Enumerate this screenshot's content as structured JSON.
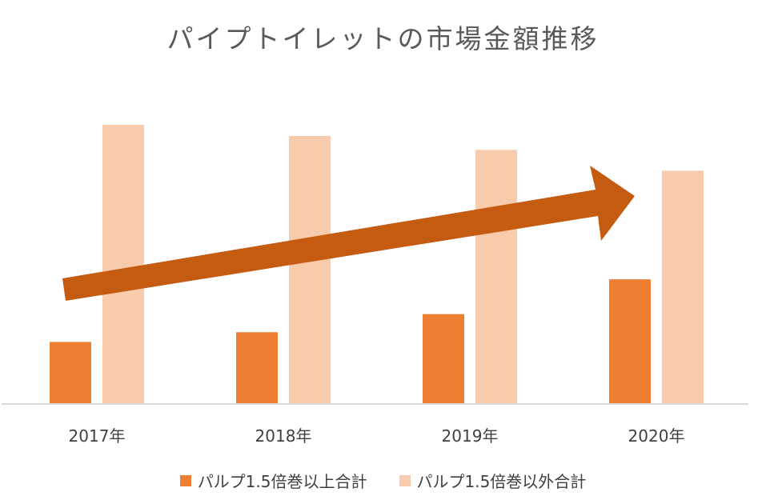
{
  "chart_data": {
    "type": "bar",
    "title": "パイプトイレットの市場金額推移",
    "categories": [
      "2017年",
      "2018年",
      "2019年",
      "2020年"
    ],
    "ylim": [
      0,
      100
    ],
    "grid": false,
    "legend_position": "bottom",
    "series": [
      {
        "name": "パルプ1.5倍巻以上合計",
        "color": "#ED7D31",
        "values": [
          22,
          25.5,
          32,
          44.5
        ]
      },
      {
        "name": "パルプ1.5倍巻以外合計",
        "color": "#F8CBAD",
        "values": [
          100,
          96,
          91,
          83.5
        ]
      }
    ],
    "annotation": {
      "type": "trend-arrow",
      "color": "#C55A11",
      "direction": "up-right"
    }
  }
}
